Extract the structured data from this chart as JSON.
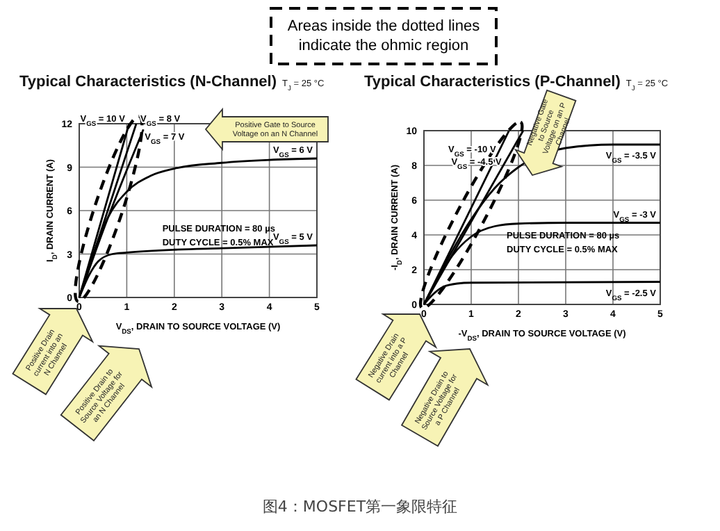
{
  "chart_data": [
    {
      "type": "line",
      "title": "Typical Characteristics (N-Channel)",
      "subtitle": "T$_{J}$ = 25 °C",
      "xlabel": "V$_{DS}$, DRAIN TO SOURCE VOLTAGE (V)",
      "ylabel": "I$_{D}$, DRAIN CURRENT (A)",
      "xlim": [
        0,
        5
      ],
      "xticks": [
        0,
        1,
        2,
        3,
        4,
        5
      ],
      "ylim": [
        0,
        12
      ],
      "yticks": [
        0,
        3,
        6,
        9,
        12
      ],
      "grid": true,
      "line_style": "solid",
      "series": [
        {
          "name": "V$_{GS}$ = 10 V",
          "color": "#000000",
          "x": [
            0,
            1.05
          ],
          "values": [
            0,
            12
          ]
        },
        {
          "name": "V$_{GS}$ = 8 V",
          "color": "#000000",
          "x": [
            0,
            1.2
          ],
          "values": [
            0,
            12
          ]
        },
        {
          "name": "V$_{GS}$ = 7 V",
          "color": "#000000",
          "x": [
            0,
            0.5,
            1,
            1.35
          ],
          "values": [
            0,
            4.6,
            8.8,
            11.6
          ]
        },
        {
          "name": "V$_{GS}$ = 6 V",
          "color": "#000000",
          "x": [
            0,
            0.3,
            0.6,
            1,
            1.5,
            2,
            3,
            4,
            5
          ],
          "values": [
            0,
            3,
            5.5,
            7.3,
            8.4,
            8.9,
            9.3,
            9.5,
            9.6
          ]
        },
        {
          "name": "V$_{GS}$ = 5 V",
          "color": "#000000",
          "x": [
            0,
            0.2,
            0.4,
            0.7,
            1,
            2,
            3,
            4,
            5
          ],
          "values": [
            0,
            1.5,
            2.5,
            3,
            3.1,
            3.3,
            3.4,
            3.5,
            3.6
          ]
        }
      ],
      "annotations": [
        "PULSE DURATION = 80 µs",
        "DUTY CYCLE = 0.5% MAX",
        "Positive Gate to Source Voltage on an N Channel",
        "Positive Drain current into an N Channel",
        "Positive Drain to Source Voltage for an N Channel",
        "Areas inside the dotted lines indicate the ohmic region"
      ]
    },
    {
      "type": "line",
      "title": "Typical Characteristics (P-Channel)",
      "subtitle": "T$_{J}$ =  25 °C",
      "xlabel": "-V$_{DS}$, DRAIN TO SOURCE VOLTAGE (V)",
      "ylabel": "-I$_{D}$, DRAIN CURRENT (A)",
      "xlim": [
        0,
        5
      ],
      "xticks": [
        0,
        1,
        2,
        3,
        4,
        5
      ],
      "ylim": [
        0,
        10
      ],
      "yticks": [
        0,
        2,
        4,
        6,
        8,
        10
      ],
      "grid": true,
      "line_style": "solid",
      "series": [
        {
          "name": "V$_{GS}$ = -10 V",
          "color": "#000000",
          "x": [
            0,
            1.8
          ],
          "values": [
            0,
            10
          ]
        },
        {
          "name": "V$_{GS}$ = -4.5 V",
          "color": "#000000",
          "x": [
            0,
            2.1
          ],
          "values": [
            0,
            10
          ]
        },
        {
          "name": "V$_{GS}$ = -3.5 V",
          "color": "#000000",
          "x": [
            0,
            0.5,
            1,
            1.5,
            2,
            3,
            4,
            5
          ],
          "values": [
            0,
            2.6,
            4.9,
            6.7,
            7.9,
            9,
            9.2,
            9.2
          ]
        },
        {
          "name": "V$_{GS}$ = -3 V",
          "color": "#000000",
          "x": [
            0,
            0.3,
            0.6,
            1,
            1.5,
            2,
            3,
            5
          ],
          "values": [
            0,
            1.5,
            2.8,
            3.9,
            4.5,
            4.65,
            4.7,
            4.7
          ]
        },
        {
          "name": "V$_{GS}$ = -2.5 V",
          "color": "#000000",
          "x": [
            0,
            0.2,
            0.4,
            0.7,
            1,
            5
          ],
          "values": [
            0,
            0.6,
            1,
            1.2,
            1.25,
            1.3
          ]
        }
      ],
      "annotations": [
        "PULSE DURATION = 80 µs",
        "DUTY CYCLE = 0.5% MAX",
        "Negative Gate to Source Voltage on an P Channel",
        "Negative Drain current into a P Channel",
        "Negative Drain to Source Voltage for a P Channel",
        "图4：MOSFET第一象限特征"
      ]
    }
  ]
}
